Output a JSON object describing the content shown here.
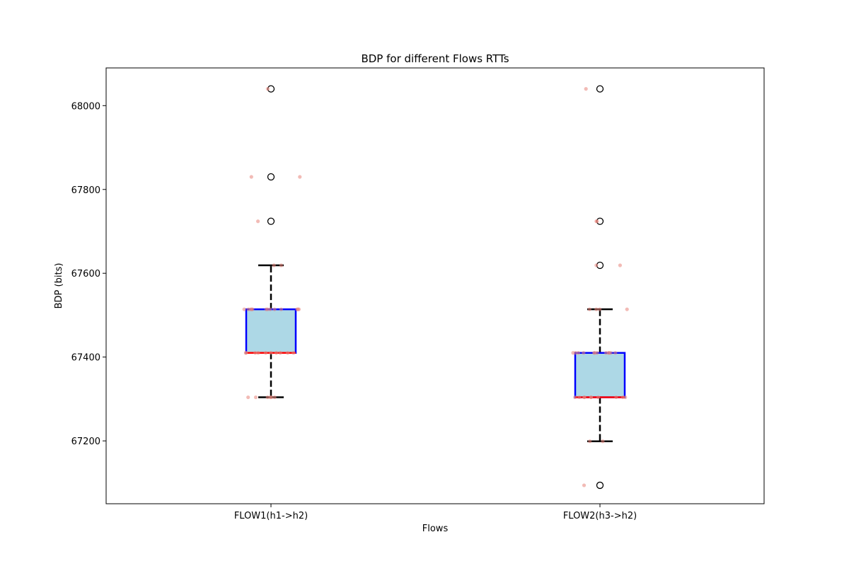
{
  "chart_data": {
    "type": "box",
    "title": "BDP for different Flows RTTs",
    "xlabel": "Flows",
    "ylabel": "BDP (bits)",
    "ylim": [
      67050,
      68090
    ],
    "yticks": [
      67200,
      67400,
      67600,
      67800,
      68000
    ],
    "grid": false,
    "categories": [
      "FLOW1(h1->h2)",
      "FLOW2(h3->h2)"
    ],
    "boxes": [
      {
        "category": "FLOW1(h1->h2)",
        "whisker_low": 67304,
        "q1": 67410,
        "median": 67410,
        "q3": 67514,
        "whisker_high": 67619,
        "outliers": [
          67724,
          67830,
          68040
        ]
      },
      {
        "category": "FLOW2(h3->h2)",
        "whisker_low": 67199,
        "q1": 67304,
        "median": 67304,
        "q3": 67410,
        "whisker_high": 67514,
        "outliers": [
          67094,
          67619,
          67724,
          68040
        ]
      }
    ],
    "jitter_points": [
      {
        "category": "FLOW1(h1->h2)",
        "values": [
          67304,
          67304,
          67304,
          67304,
          67304,
          67304,
          67410,
          67410,
          67410,
          67410,
          67410,
          67410,
          67410,
          67410,
          67410,
          67410,
          67514,
          67514,
          67514,
          67514,
          67514,
          67514,
          67514,
          67514,
          67514,
          67514,
          67514,
          67514,
          67514,
          67619,
          67619,
          67724,
          67830,
          67830,
          68040
        ]
      },
      {
        "category": "FLOW2(h3->h2)",
        "values": [
          67094,
          67199,
          67199,
          67304,
          67304,
          67304,
          67304,
          67304,
          67304,
          67304,
          67304,
          67304,
          67304,
          67410,
          67410,
          67410,
          67410,
          67410,
          67410,
          67410,
          67410,
          67410,
          67410,
          67410,
          67410,
          67514,
          67514,
          67514,
          67514,
          67619,
          67619,
          67724,
          67724,
          68040
        ]
      }
    ],
    "colors": {
      "box_fill": "#add8e6",
      "box_edge": "#0000ff",
      "median": "#ff0000",
      "whisker": "#000000",
      "outlier_edge": "#000000",
      "jitter": "#e8837a"
    }
  }
}
